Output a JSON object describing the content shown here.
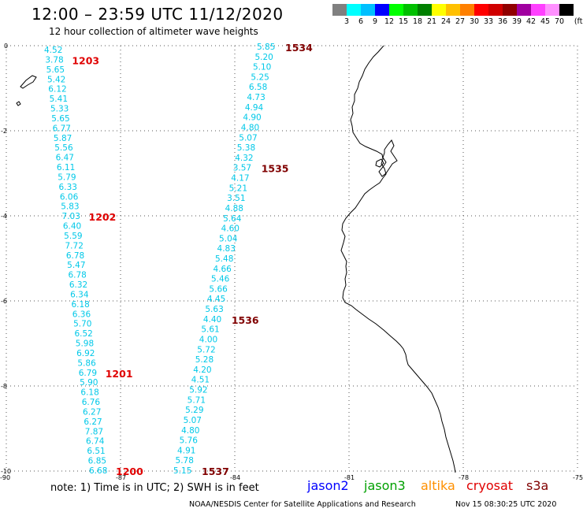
{
  "title": "12:00 – 23:59 UTC 11/12/2020",
  "subtitle": "12 hour collection of altimeter wave heights",
  "colorbar": {
    "unit": "(ft)",
    "labels": [
      "3",
      "6",
      "9",
      "12",
      "15",
      "18",
      "21",
      "24",
      "27",
      "30",
      "33",
      "36",
      "39",
      "42",
      "45",
      "70"
    ],
    "colors": [
      "#808080",
      "#00ffff",
      "#00c0ff",
      "#0000ff",
      "#00ff00",
      "#00c000",
      "#008000",
      "#ffff00",
      "#ffc000",
      "#ff8000",
      "#ff0000",
      "#d00000",
      "#900000",
      "#a000a0",
      "#ff40ff",
      "#ff90ff",
      "#000000"
    ]
  },
  "axes": {
    "lon_ticks": [
      "-90",
      "-87",
      "-84",
      "-81",
      "-78",
      "-75"
    ],
    "lat_ticks": [
      "0",
      "-2",
      "-4",
      "-6",
      "-8",
      "-10"
    ]
  },
  "tracks": {
    "west": {
      "color": "#00c8e8",
      "values": [
        "4.52",
        "3.78",
        "5.65",
        "5.42",
        "6.12",
        "5.41",
        "5.33",
        "5.65",
        "6.77",
        "5.87",
        "5.56",
        "6.47",
        "6.11",
        "5.79",
        "6.33",
        "6.06",
        "5.83",
        "7.03",
        "6.40",
        "5.59",
        "7.72",
        "6.78",
        "5.47",
        "6.78",
        "6.32",
        "6.34",
        "6.18",
        "6.36",
        "5.70",
        "6.52",
        "5.98",
        "6.92",
        "5.86",
        "6.79",
        "5.90",
        "6.18",
        "6.76",
        "6.27",
        "6.27",
        "7.87",
        "6.74",
        "6.51",
        "6.85",
        "6.68"
      ],
      "time_labels": [
        {
          "text": "1203",
          "at": 1
        },
        {
          "text": "1202",
          "at": 17
        },
        {
          "text": "1201",
          "at": 33
        },
        {
          "text": "1200",
          "at": 43
        }
      ],
      "time_color": "#e00000"
    },
    "east": {
      "color": "#00c8e8",
      "values": [
        "5.85",
        "5.20",
        "5.10",
        "5.25",
        "6.58",
        "4.73",
        "4.94",
        "4.90",
        "4.80",
        "5.07",
        "5.38",
        "4.32",
        "3.57",
        "4.17",
        "5.21",
        "3.51",
        "4.88",
        "5.64",
        "4.60",
        "5.04",
        "4.83",
        "5.48",
        "4.66",
        "5.46",
        "5.66",
        "4.45",
        "5.63",
        "4.40",
        "5.61",
        "4.00",
        "5.72",
        "5.28",
        "4.20",
        "4.51",
        "5.92",
        "5.71",
        "5.29",
        "5.07",
        "4.80",
        "5.76",
        "4.91",
        "5.78",
        "5.15"
      ],
      "time_labels": [
        {
          "text": "1534",
          "at": 0
        },
        {
          "text": "1535",
          "at": 12
        },
        {
          "text": "1536",
          "at": 27
        },
        {
          "text": "1537",
          "at": 42
        }
      ],
      "time_color": "#800000"
    }
  },
  "note": "note: 1) Time is in UTC; 2) SWH is in feet",
  "legend": [
    {
      "name": "jason2",
      "color": "#0000ff"
    },
    {
      "name": "jason3",
      "color": "#00a000"
    },
    {
      "name": "altika",
      "color": "#ff9000"
    },
    {
      "name": "cryosat",
      "color": "#e00000"
    },
    {
      "name": "s3a",
      "color": "#800000"
    }
  ],
  "credit": "NOAA/NESDIS Center for Satellite Applications and Research",
  "timestamp": "Nov 15 08:30:25 UTC 2020"
}
